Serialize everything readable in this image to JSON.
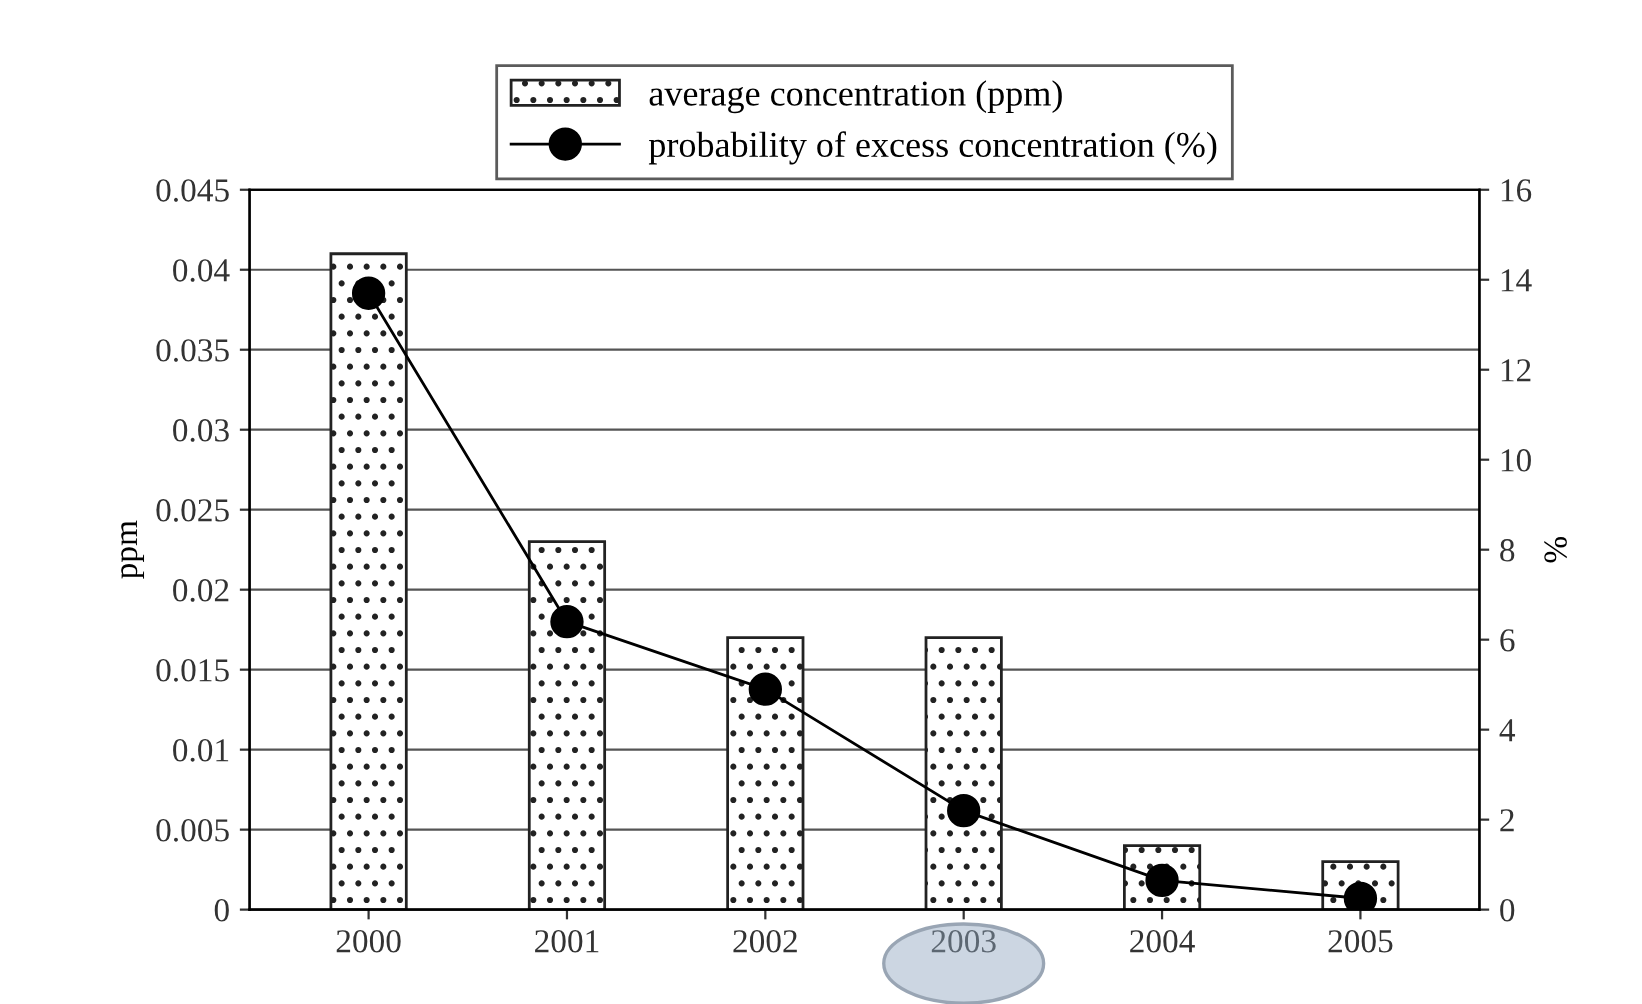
{
  "chart_data": {
    "type": "bar",
    "ylabel": "ppm",
    "y2label": "%",
    "categories": [
      "2000",
      "2001",
      "2002",
      "2003",
      "2004",
      "2005"
    ],
    "series": [
      {
        "name": "average concentration (ppm)",
        "color": "#222222",
        "values": [
          0.041,
          0.023,
          0.017,
          0.017,
          0.004,
          0.003
        ]
      },
      {
        "name": "probability of excess concentration (%)",
        "type": "line",
        "axis": "y2",
        "color": "#000000",
        "marker": "circle",
        "values": [
          13.7,
          6.4,
          4.9,
          2.2,
          0.65,
          0.25
        ]
      }
    ],
    "ylim": [
      0,
      0.045
    ],
    "yticks": [
      0,
      0.005,
      0.01,
      0.015,
      0.02,
      0.025,
      0.03,
      0.035,
      0.04,
      0.045
    ],
    "y2lim": [
      0,
      16
    ],
    "y2ticks": [
      0,
      2,
      4,
      6,
      8,
      10,
      12,
      14,
      16
    ],
    "grid": "y",
    "legend": "top"
  }
}
